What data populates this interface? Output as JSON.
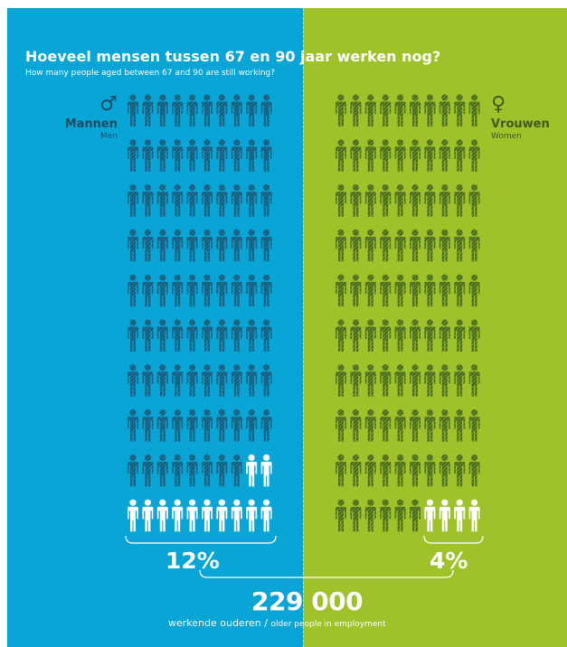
{
  "header": {
    "title": "Hoeveel mensen tussen 67 en 90 jaar werken nog?",
    "subtitle": "How many people aged between 67 and 90 are still working?"
  },
  "men": {
    "symbol": "♂",
    "label": "Mannen",
    "label_en": "Men",
    "percent_label": "12%",
    "working_share": 0.12,
    "total_figures": 100,
    "working_figures": 12,
    "panel_color": "#0aa5d7",
    "figure_color": "#1c5b78",
    "highlight_color": "#ffffff"
  },
  "women": {
    "symbol": "♀",
    "label": "Vrouwen",
    "label_en": "Women",
    "percent_label": "4%",
    "working_share": 0.04,
    "total_figures": 100,
    "working_figures": 4,
    "panel_color": "#9fc22a",
    "figure_color": "#4a6a22",
    "highlight_color": "#ffffff"
  },
  "total": {
    "value": "229 000",
    "caption_nl": "werkende ouderen",
    "separator": "/",
    "caption_en": "older people in employment"
  }
}
